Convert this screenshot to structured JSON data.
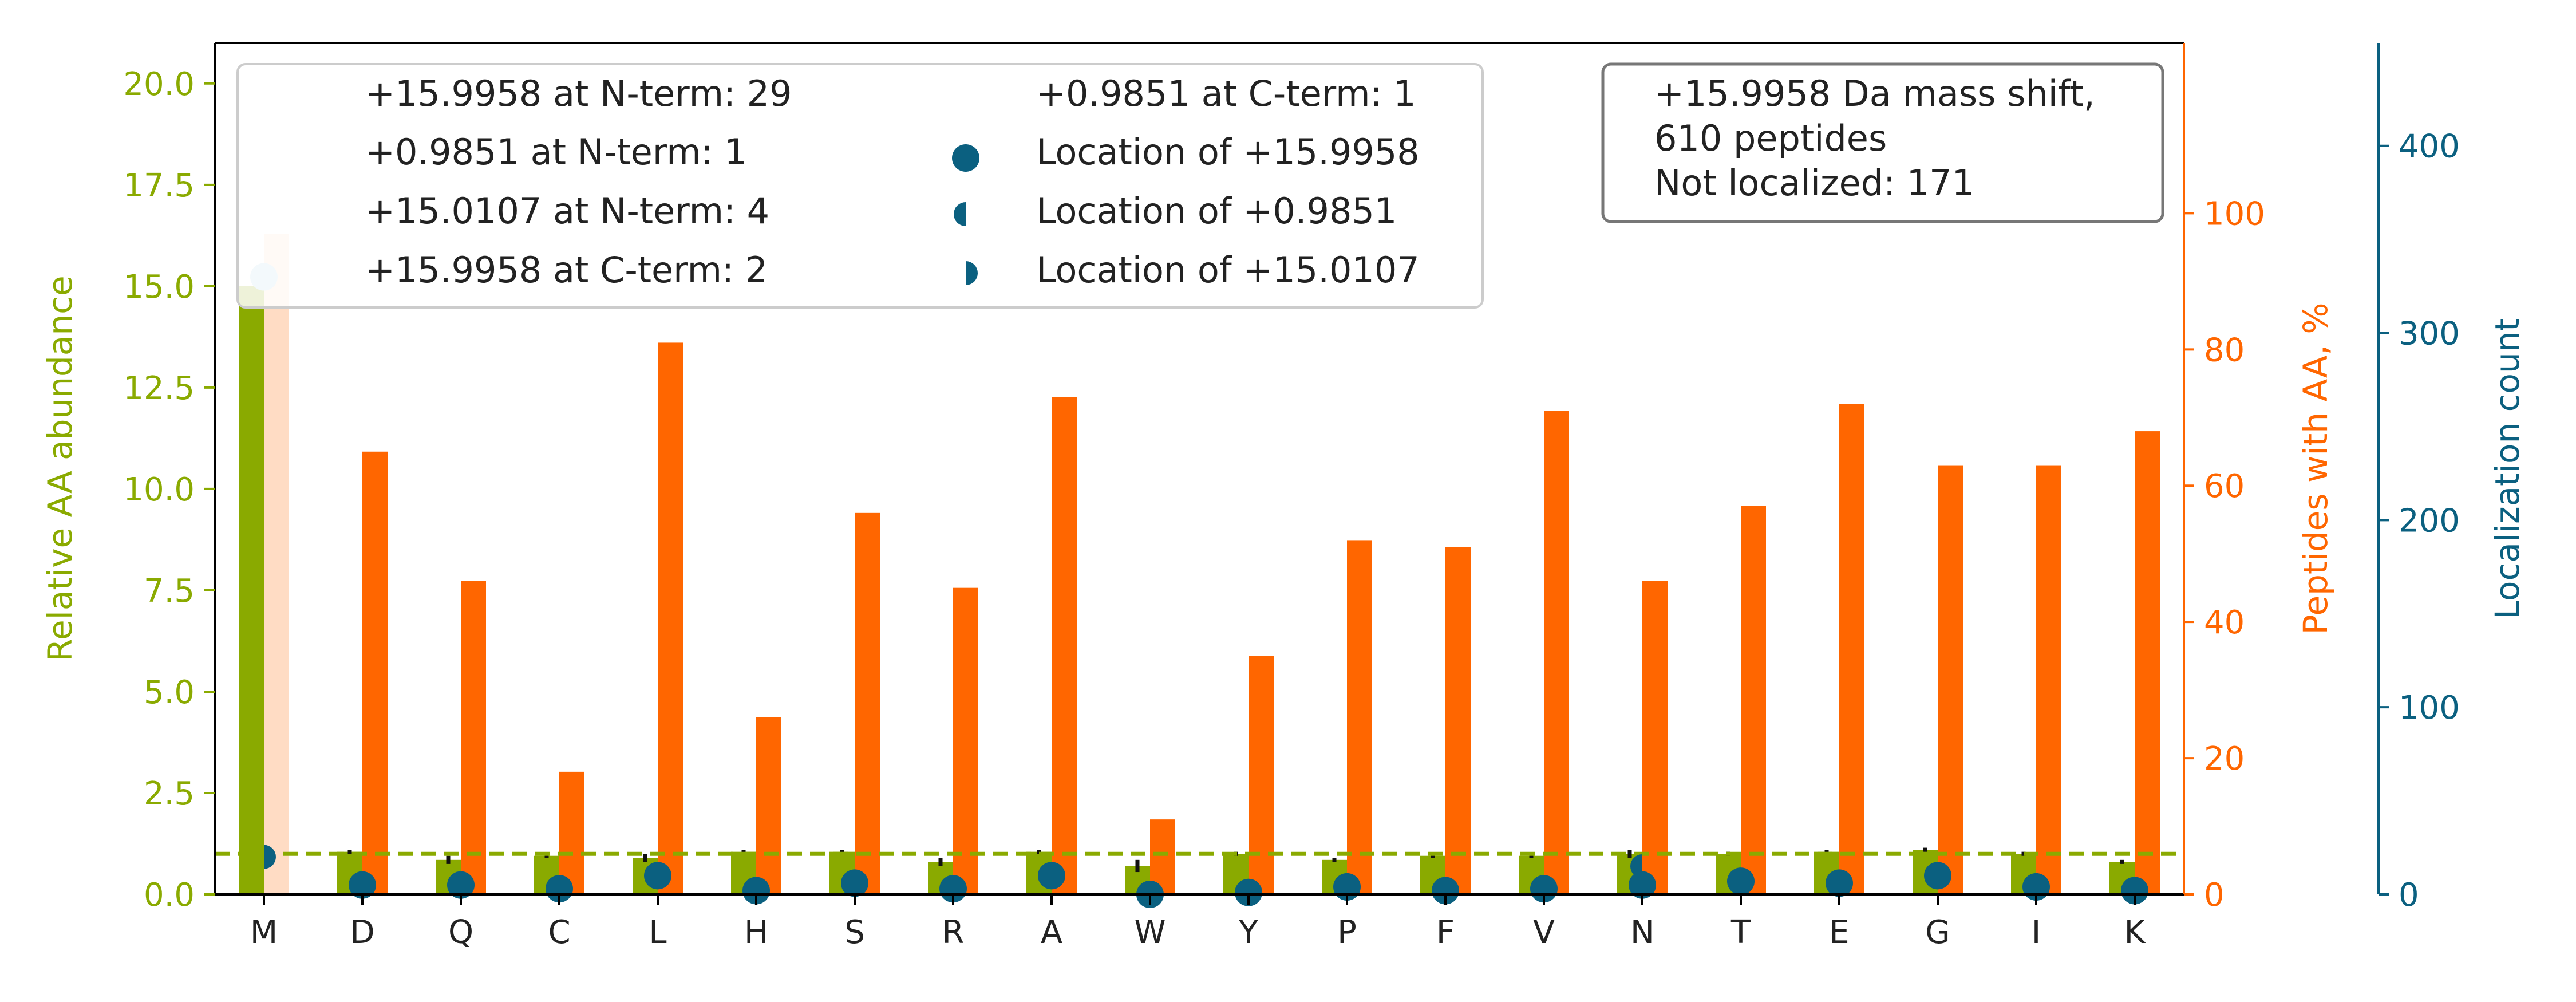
{
  "colors": {
    "abundance": "#8aaa00",
    "peptides": "#ff6600",
    "localization": "#0b6080",
    "localization_highlight": "#add8e6",
    "peptides_highlight": "#ffdcc4",
    "axis": "#000000"
  },
  "chart_data": {
    "type": "bar",
    "categories": [
      "M",
      "D",
      "Q",
      "C",
      "L",
      "H",
      "S",
      "R",
      "A",
      "W",
      "Y",
      "P",
      "F",
      "V",
      "N",
      "T",
      "E",
      "G",
      "I",
      "K"
    ],
    "series": [
      {
        "name": "Relative AA abundance",
        "axis": "left",
        "values": [
          15.0,
          1.05,
          0.85,
          0.95,
          0.9,
          1.05,
          1.05,
          0.8,
          1.05,
          0.7,
          1.0,
          0.85,
          0.95,
          0.95,
          1.0,
          1.0,
          1.05,
          1.1,
          1.0,
          0.8
        ],
        "error": [
          0,
          0.05,
          0.1,
          0.05,
          0.1,
          0.05,
          0.05,
          0.1,
          0.05,
          0.15,
          0.05,
          0.05,
          0.05,
          0.05,
          0.1,
          0.05,
          0.05,
          0.05,
          0.05,
          0.05
        ]
      },
      {
        "name": "Peptides with AA, %",
        "axis": "right",
        "values": [
          97,
          65,
          46,
          18,
          81,
          26,
          56,
          45,
          73,
          11,
          35,
          52,
          51,
          71,
          46,
          57,
          72,
          63,
          63,
          68
        ]
      },
      {
        "name": "Location of +15.9958",
        "axis": "localization",
        "values": [
          330,
          5,
          5,
          3,
          10,
          2,
          6,
          3,
          10,
          0,
          1,
          4,
          2,
          3,
          5,
          7,
          6,
          10,
          4,
          2
        ]
      },
      {
        "name": "Location of +0.9851",
        "axis": "localization",
        "values": [
          null,
          null,
          null,
          null,
          null,
          null,
          null,
          null,
          null,
          null,
          null,
          null,
          null,
          null,
          15,
          null,
          null,
          null,
          null,
          null
        ]
      },
      {
        "name": "Location of +15.0107",
        "axis": "localization",
        "values": [
          20,
          null,
          null,
          null,
          null,
          null,
          null,
          null,
          null,
          null,
          null,
          null,
          null,
          null,
          null,
          null,
          null,
          null,
          null,
          null
        ]
      }
    ],
    "reference_line": {
      "axis": "left",
      "y": 1.0,
      "style": "dashed"
    },
    "axes": {
      "left": {
        "label": "Relative AA abundance",
        "ylim": [
          0,
          21
        ],
        "ticks": [
          0.0,
          2.5,
          5.0,
          7.5,
          10.0,
          12.5,
          15.0,
          17.5,
          20.0
        ],
        "tick_labels": [
          "0.0",
          "2.5",
          "5.0",
          "7.5",
          "10.0",
          "12.5",
          "15.0",
          "17.5",
          "20.0"
        ]
      },
      "right": {
        "label": "Peptides with AA, %",
        "ylim": [
          0,
          125
        ],
        "ticks": [
          0,
          20,
          40,
          60,
          80,
          100
        ],
        "tick_labels": [
          "0",
          "20",
          "40",
          "60",
          "80",
          "100"
        ]
      },
      "localization": {
        "label": "Localization count",
        "ylim": [
          0,
          455
        ],
        "ticks": [
          0,
          100,
          200,
          300,
          400
        ],
        "tick_labels": [
          "0",
          "100",
          "200",
          "300",
          "400"
        ]
      }
    },
    "legend": {
      "placement": "top-left",
      "entries": [
        "+15.9958 at N-term: 29",
        "+0.9851 at N-term: 1",
        "+15.0107 at N-term: 4",
        "+15.9958 at C-term: 2",
        "+0.9851 at C-term: 1",
        "Location of +15.9958",
        "Location of +0.9851",
        "Location of +15.0107"
      ]
    },
    "annotation": {
      "placement": "top-right",
      "lines": [
        "+15.9958 Da mass shift,",
        "610 peptides",
        "Not localized: 171"
      ]
    }
  }
}
